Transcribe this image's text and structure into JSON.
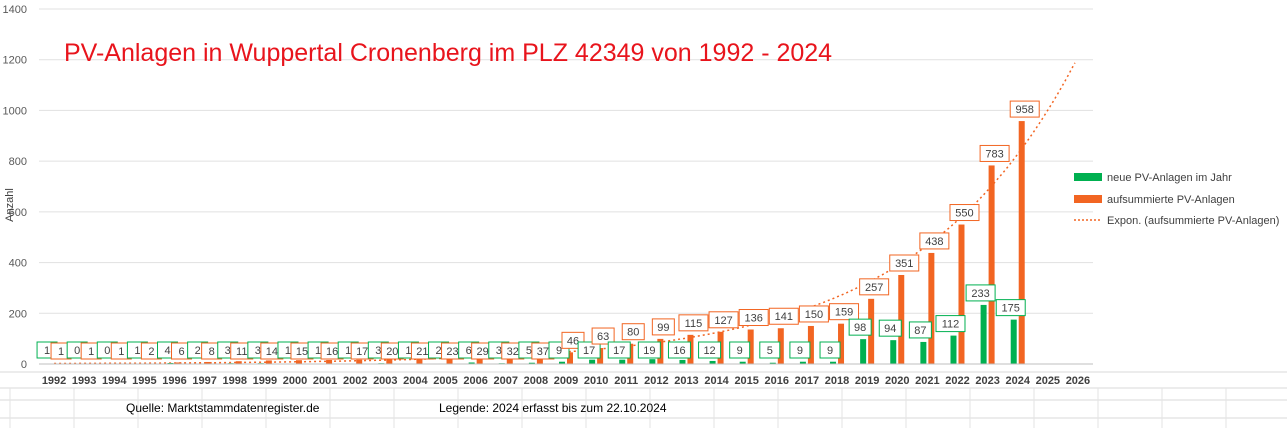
{
  "chart_data": {
    "type": "bar",
    "title": "PV-Anlagen in Wuppertal Cronenberg im PLZ 42349 von 1992 - 2024",
    "ylabel": "Anzahl",
    "xlabel": "",
    "ylim": [
      0,
      1400
    ],
    "yticks": [
      0,
      200,
      400,
      600,
      800,
      1000,
      1200,
      1400
    ],
    "grid": true,
    "legend_position": "right",
    "categories": [
      "1992",
      "1993",
      "1994",
      "1995",
      "1996",
      "1997",
      "1998",
      "1999",
      "2000",
      "2001",
      "2002",
      "2003",
      "2004",
      "2005",
      "2006",
      "2007",
      "2008",
      "2009",
      "2010",
      "2011",
      "2012",
      "2013",
      "2014",
      "2015",
      "2016",
      "2017",
      "2018",
      "2019",
      "2020",
      "2021",
      "2022",
      "2023",
      "2024",
      "2025",
      "2026"
    ],
    "series": [
      {
        "name": "neue PV-Anlagen im Jahr",
        "color": "#00b050",
        "values": [
          1,
          0,
          0,
          1,
          4,
          2,
          3,
          3,
          1,
          1,
          1,
          3,
          1,
          2,
          6,
          3,
          5,
          9,
          17,
          17,
          19,
          16,
          12,
          9,
          5,
          9,
          9,
          98,
          94,
          87,
          112,
          233,
          175,
          null,
          null
        ]
      },
      {
        "name": "aufsummierte PV-Anlagen",
        "color": "#f26522",
        "values": [
          1,
          1,
          1,
          2,
          6,
          8,
          11,
          14,
          15,
          16,
          17,
          20,
          21,
          23,
          29,
          32,
          37,
          46,
          63,
          80,
          99,
          115,
          127,
          136,
          141,
          150,
          159,
          257,
          351,
          438,
          550,
          783,
          958,
          null,
          null
        ]
      }
    ],
    "trendline": {
      "name": "Expon. (aufsummierte PV-Anlagen)",
      "color": "#f26522",
      "type": "exponential"
    }
  },
  "footer": {
    "source": "Quelle: Marktstammdatenregister.de",
    "legend_note": "Legende: 2024 erfasst bis zum 22.10.2024"
  }
}
